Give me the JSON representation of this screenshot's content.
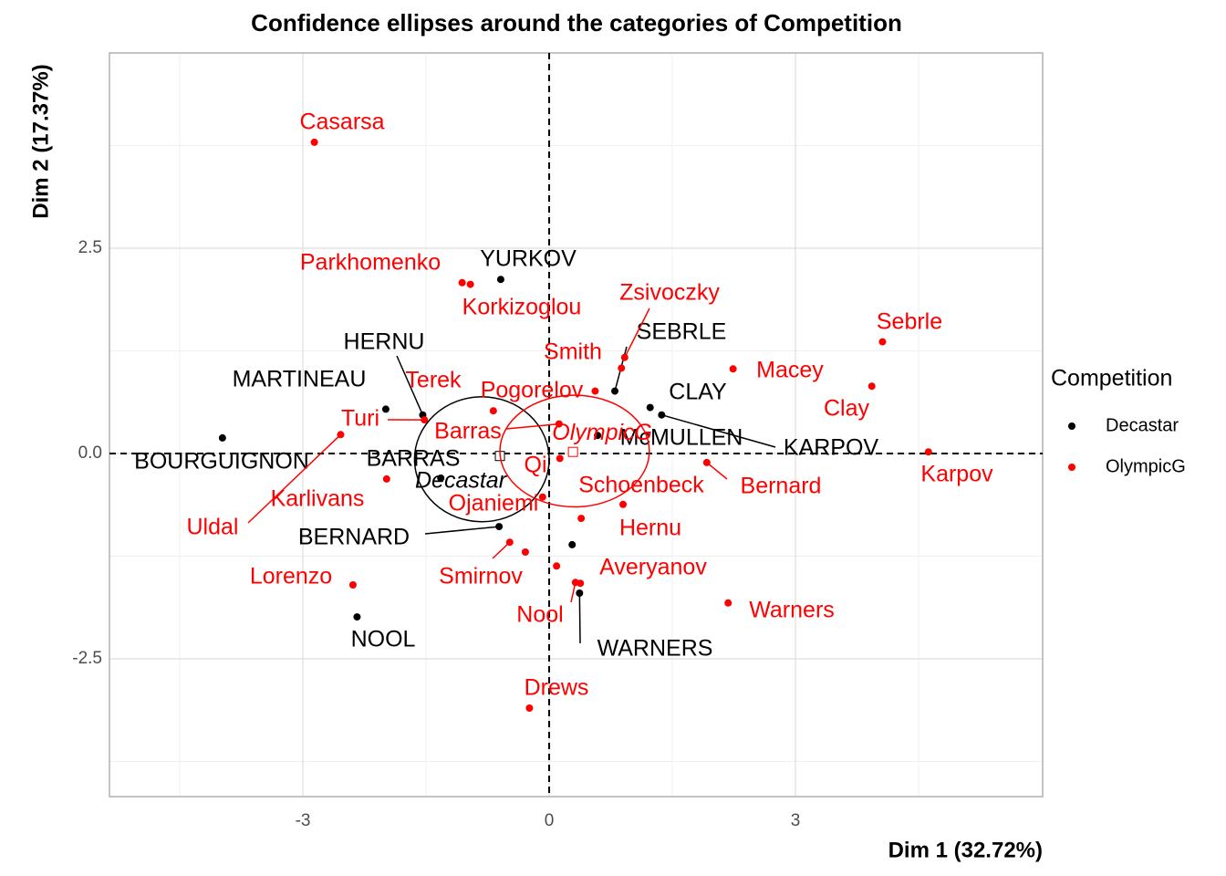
{
  "chart_data": {
    "type": "scatter",
    "title": "Confidence ellipses around the categories of Competition",
    "x_label": "Dim 1 (32.72%)",
    "y_label": "Dim 2 (17.37%)",
    "legend_title": "Competition",
    "xlim": [
      -5.356,
      6.011
    ],
    "ylim": [
      -4.178,
      4.878
    ],
    "xticks": [
      -3,
      0,
      3
    ],
    "yticks": [
      -2.5,
      {
        "value": 0,
        "label": "0.0"
      },
      2.5
    ],
    "x_minor_grid": [
      -4.5,
      -1.5,
      1.5,
      4.5
    ],
    "y_minor_grid": [
      -3.75,
      -1.25,
      1.25,
      3.75
    ],
    "grid": true,
    "hline": 0,
    "vline": 0,
    "series": [
      {
        "name": "Decastar",
        "color": "#000000",
        "labels": [
          "SEBRLE",
          "CLAY",
          "KARPOV",
          "BERNARD",
          "YURKOV",
          "WARNERS",
          null,
          "HERNU",
          "MARTINEAU",
          "McMULLEN",
          "BOURGUIGNON",
          "BARRAS",
          "NOOL"
        ],
        "x": [
          0.8,
          1.23,
          1.37,
          -0.61,
          -0.59,
          0.37,
          0.28,
          -1.54,
          -1.99,
          0.59,
          -3.98,
          -1.32,
          -2.34
        ],
        "values": [
          0.76,
          0.56,
          0.47,
          -0.89,
          2.12,
          -1.7,
          -1.11,
          0.47,
          0.54,
          0.22,
          0.19,
          -0.3,
          -1.99
        ],
        "ellipse": {
          "label": "Decastar",
          "center": [
            -0.6,
            -0.03
          ],
          "ellipse_center": [
            -0.82,
            -0.07
          ],
          "radii": [
            0.82,
            0.76
          ]
        }
      },
      {
        "name": "OlympicG",
        "color": "#ff0000",
        "labels": [
          "Casarsa",
          "Parkhomenko",
          "Korkizoglou",
          "Smith",
          "Zsivoczky",
          "Sebrle",
          "Macey",
          "Clay",
          "Karpov",
          "Bernard",
          "Terek",
          "Pogorelov",
          "Turi",
          "Barras",
          "Qi",
          "Schoenbeck",
          "Hernu",
          "Ojaniemi",
          "Karlivans",
          "Uldal",
          "Smirnov",
          "Lorenzo",
          "Averyanov",
          "Nool",
          "Warners",
          "Drews",
          null,
          null
        ],
        "x": [
          -2.86,
          -1.06,
          -0.96,
          0.88,
          0.92,
          4.06,
          2.24,
          3.93,
          4.62,
          1.92,
          -0.68,
          0.56,
          -1.52,
          0.12,
          0.13,
          0.9,
          0.39,
          -0.08,
          -1.98,
          -2.54,
          -0.48,
          -2.39,
          0.09,
          0.32,
          2.18,
          -0.24,
          -0.29,
          0.38
        ],
        "values": [
          3.79,
          2.08,
          2.06,
          1.04,
          1.17,
          1.36,
          1.03,
          0.82,
          0.02,
          -0.11,
          0.52,
          0.76,
          0.41,
          0.36,
          -0.06,
          -0.62,
          -0.79,
          -0.53,
          -0.31,
          0.23,
          -1.08,
          -1.6,
          -1.37,
          -1.57,
          -1.82,
          -3.1,
          -1.2,
          -1.58
        ],
        "ellipse": {
          "label": "OlympicG",
          "center": [
            0.29,
            0.02
          ],
          "ellipse_center": [
            0.31,
            0.03
          ],
          "radii": [
            0.91,
            0.68
          ]
        }
      }
    ]
  }
}
